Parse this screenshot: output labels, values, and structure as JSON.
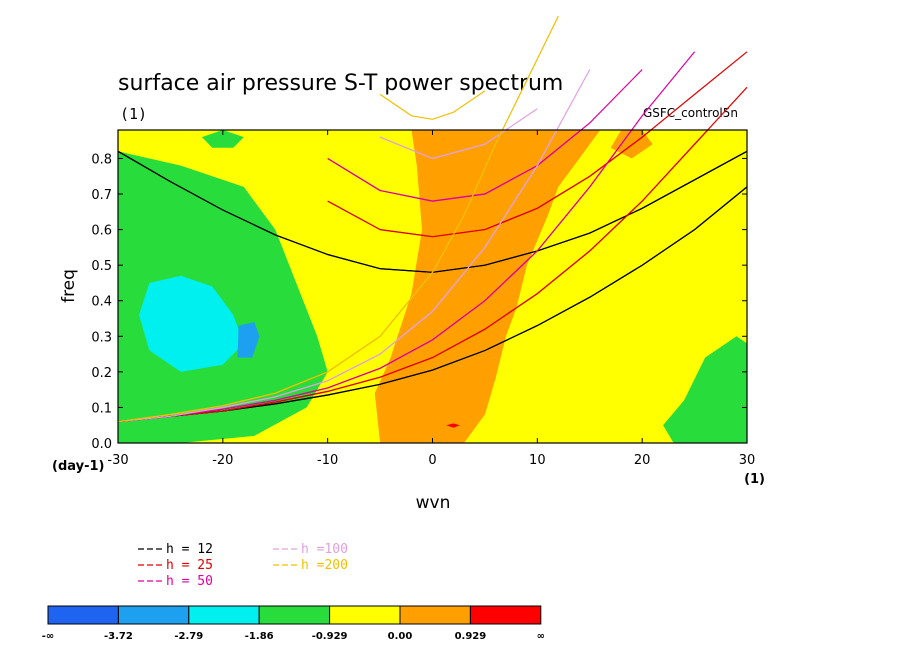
{
  "chart_data": {
    "type": "heatmap",
    "title": "surface air pressure S-T power spectrum",
    "subtitle": "(1)",
    "run_label": "GSFC_control5n",
    "xlabel": "wvn",
    "ylabel": "freq",
    "x_unit_label": "(1)",
    "y_unit_label": "(day-1)",
    "xlim": [
      -30,
      30
    ],
    "ylim": [
      0,
      0.88
    ],
    "x_ticks": [
      "-30",
      "-20",
      "-10",
      "0",
      "10",
      "20",
      "30"
    ],
    "y_ticks": [
      "0.0",
      "0.1",
      "0.2",
      "0.3",
      "0.4",
      "0.5",
      "0.6",
      "0.7",
      "0.8"
    ],
    "contour_levels": [
      {
        "label": "-∞",
        "color": "#1e64f0"
      },
      {
        "label": "-3.72",
        "color": "#1ea0f0"
      },
      {
        "label": "-2.79",
        "color": "#00f0f0"
      },
      {
        "label": "-1.86",
        "color": "#28dc3c"
      },
      {
        "label": "-0.929",
        "color": "#ffff00"
      },
      {
        "label": "0.00",
        "color": "#ffa000"
      },
      {
        "label": "0.929",
        "color": "#ff0000"
      },
      {
        "label": "∞",
        "color": null
      }
    ],
    "series": [
      {
        "name": "h = 12",
        "color": "#000000"
      },
      {
        "name": "h = 25",
        "color": "#e00000"
      },
      {
        "name": "h = 50",
        "color": "#e000a0"
      },
      {
        "name": "h =100",
        "color": "#e0a0e0"
      },
      {
        "name": "h =200",
        "color": "#f0c000"
      }
    ],
    "regions": [
      {
        "level": 3,
        "points": [
          [
            -30,
            0.05
          ],
          [
            -30,
            0.82
          ],
          [
            -24,
            0.78
          ],
          [
            -18,
            0.72
          ],
          [
            -15,
            0.6
          ],
          [
            -13,
            0.45
          ],
          [
            -11,
            0.3
          ],
          [
            -10,
            0.2
          ],
          [
            -12,
            0.1
          ],
          [
            -17,
            0.02
          ],
          [
            -24,
            0.0
          ],
          [
            -30,
            0.0
          ]
        ]
      },
      {
        "level": 2,
        "points": [
          [
            -27,
            0.45
          ],
          [
            -24,
            0.47
          ],
          [
            -21,
            0.44
          ],
          [
            -19,
            0.36
          ],
          [
            -18,
            0.28
          ],
          [
            -20,
            0.22
          ],
          [
            -24,
            0.2
          ],
          [
            -27,
            0.26
          ],
          [
            -28,
            0.36
          ]
        ]
      },
      {
        "level": 1,
        "points": [
          [
            -18.5,
            0.33
          ],
          [
            -17,
            0.34
          ],
          [
            -16.5,
            0.3
          ],
          [
            -17.2,
            0.24
          ],
          [
            -18.6,
            0.24
          ]
        ]
      },
      {
        "level": 3,
        "points": [
          [
            30,
            0.0
          ],
          [
            30,
            0.28
          ],
          [
            29,
            0.3
          ],
          [
            26,
            0.24
          ],
          [
            24,
            0.12
          ],
          [
            22,
            0.05
          ],
          [
            23,
            0.0
          ]
        ]
      },
      {
        "level": 3,
        "points": [
          [
            -22,
            0.86
          ],
          [
            -20,
            0.88
          ],
          [
            -18,
            0.86
          ],
          [
            -19,
            0.83
          ],
          [
            -21,
            0.83
          ]
        ]
      },
      {
        "level": 5,
        "points": [
          [
            -5,
            0.0
          ],
          [
            -5.5,
            0.14
          ],
          [
            -4,
            0.24
          ],
          [
            -2,
            0.42
          ],
          [
            -1,
            0.6
          ],
          [
            -1.5,
            0.78
          ],
          [
            -2,
            0.88
          ],
          [
            16,
            0.88
          ],
          [
            14,
            0.8
          ],
          [
            12,
            0.72
          ],
          [
            11,
            0.64
          ],
          [
            9,
            0.5
          ],
          [
            8,
            0.38
          ],
          [
            7,
            0.3
          ],
          [
            6,
            0.18
          ],
          [
            5,
            0.08
          ],
          [
            3,
            0.0
          ]
        ]
      },
      {
        "level": 5,
        "points": [
          [
            18,
            0.88
          ],
          [
            20,
            0.88
          ],
          [
            21,
            0.84
          ],
          [
            19,
            0.8
          ],
          [
            17,
            0.83
          ]
        ]
      },
      {
        "level": 6,
        "points": [
          [
            1.3,
            0.05
          ],
          [
            2,
            0.055
          ],
          [
            2.6,
            0.05
          ],
          [
            2,
            0.043
          ]
        ]
      }
    ],
    "curves": [
      {
        "series": 0,
        "x": [
          -30,
          -25,
          -20,
          -15,
          -10,
          -5,
          0,
          5,
          10,
          15,
          20,
          25,
          30
        ],
        "y": [
          0.82,
          0.735,
          0.655,
          0.585,
          0.53,
          0.49,
          0.48,
          0.5,
          0.54,
          0.59,
          0.66,
          0.74,
          0.82
        ]
      },
      {
        "series": 0,
        "x": [
          -30,
          -25,
          -20,
          -15,
          -10,
          -5,
          0,
          5,
          10,
          15,
          20,
          25,
          30
        ],
        "y": [
          0.06,
          0.075,
          0.09,
          0.11,
          0.135,
          0.165,
          0.205,
          0.26,
          0.33,
          0.41,
          0.5,
          0.6,
          0.72
        ]
      },
      {
        "series": 1,
        "x": [
          -10,
          -5,
          0,
          5,
          10,
          15,
          20,
          25,
          30
        ],
        "y": [
          0.68,
          0.6,
          0.58,
          0.6,
          0.66,
          0.75,
          0.86,
          0.98,
          1.1
        ]
      },
      {
        "series": 1,
        "x": [
          -30,
          -25,
          -20,
          -15,
          -10,
          -5,
          0,
          5,
          10,
          15,
          20,
          25,
          30
        ],
        "y": [
          0.06,
          0.075,
          0.09,
          0.115,
          0.145,
          0.185,
          0.24,
          0.32,
          0.42,
          0.54,
          0.68,
          0.84,
          1.0
        ]
      },
      {
        "series": 2,
        "x": [
          -10,
          -5,
          0,
          5,
          10,
          15,
          20
        ],
        "y": [
          0.8,
          0.71,
          0.68,
          0.7,
          0.78,
          0.9,
          1.05
        ]
      },
      {
        "series": 2,
        "x": [
          -30,
          -25,
          -20,
          -15,
          -10,
          -5,
          0,
          5,
          10,
          15,
          20,
          25
        ],
        "y": [
          0.06,
          0.075,
          0.095,
          0.12,
          0.155,
          0.21,
          0.29,
          0.4,
          0.54,
          0.72,
          0.92,
          1.1
        ]
      },
      {
        "series": 3,
        "x": [
          -5,
          0,
          5,
          10
        ],
        "y": [
          0.86,
          0.8,
          0.84,
          0.94
        ]
      },
      {
        "series": 3,
        "x": [
          -30,
          -25,
          -20,
          -15,
          -10,
          -5,
          0,
          5,
          10,
          15
        ],
        "y": [
          0.06,
          0.075,
          0.1,
          0.13,
          0.175,
          0.25,
          0.37,
          0.55,
          0.78,
          1.05
        ]
      },
      {
        "series": 4,
        "x": [
          -5,
          -2,
          0,
          2,
          5
        ],
        "y": [
          0.98,
          0.92,
          0.91,
          0.93,
          0.99
        ]
      },
      {
        "series": 4,
        "x": [
          -30,
          -25,
          -20,
          -15,
          -10,
          -5,
          0,
          3,
          6,
          9,
          12
        ],
        "y": [
          0.06,
          0.08,
          0.105,
          0.14,
          0.2,
          0.3,
          0.48,
          0.64,
          0.84,
          1.02,
          1.2
        ]
      }
    ]
  }
}
